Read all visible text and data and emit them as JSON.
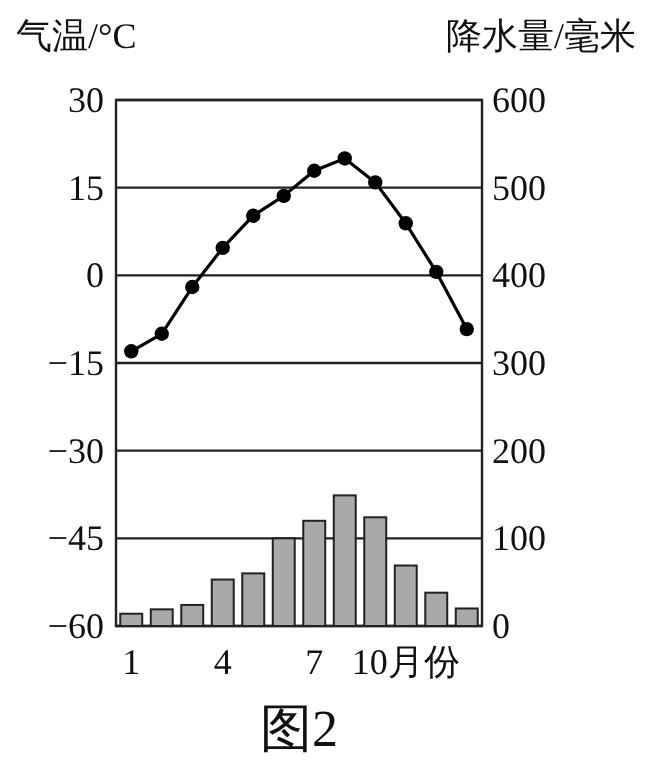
{
  "chart_data": {
    "type": "bar",
    "title": "图2",
    "ylabel": "气温/°C",
    "y2label": "降水量/毫米",
    "categories": [
      "1",
      null,
      null,
      "4",
      null,
      null,
      "7",
      null,
      null,
      "10月份",
      null,
      null
    ],
    "series": [
      {
        "axis": "y2",
        "color": "#a9a9a9",
        "values": [
          14,
          19,
          24,
          53,
          60,
          100,
          120,
          149,
          124,
          69,
          38,
          20
        ]
      },
      {
        "type": "line",
        "axis": "y",
        "color": "#000000",
        "marker": "circle",
        "values": [
          -13,
          -10,
          -2,
          4.7,
          10.2,
          13.6,
          17.9,
          20,
          15.9,
          8.9,
          0.6,
          -9.2
        ]
      }
    ],
    "ylim": [
      -60,
      30
    ],
    "yticks": [
      30,
      15,
      0,
      -15,
      -30,
      -45,
      -60
    ],
    "y2lim": [
      0,
      600
    ],
    "y2ticks": [
      0,
      100,
      200,
      300,
      400,
      500,
      600
    ],
    "grid": "y"
  }
}
